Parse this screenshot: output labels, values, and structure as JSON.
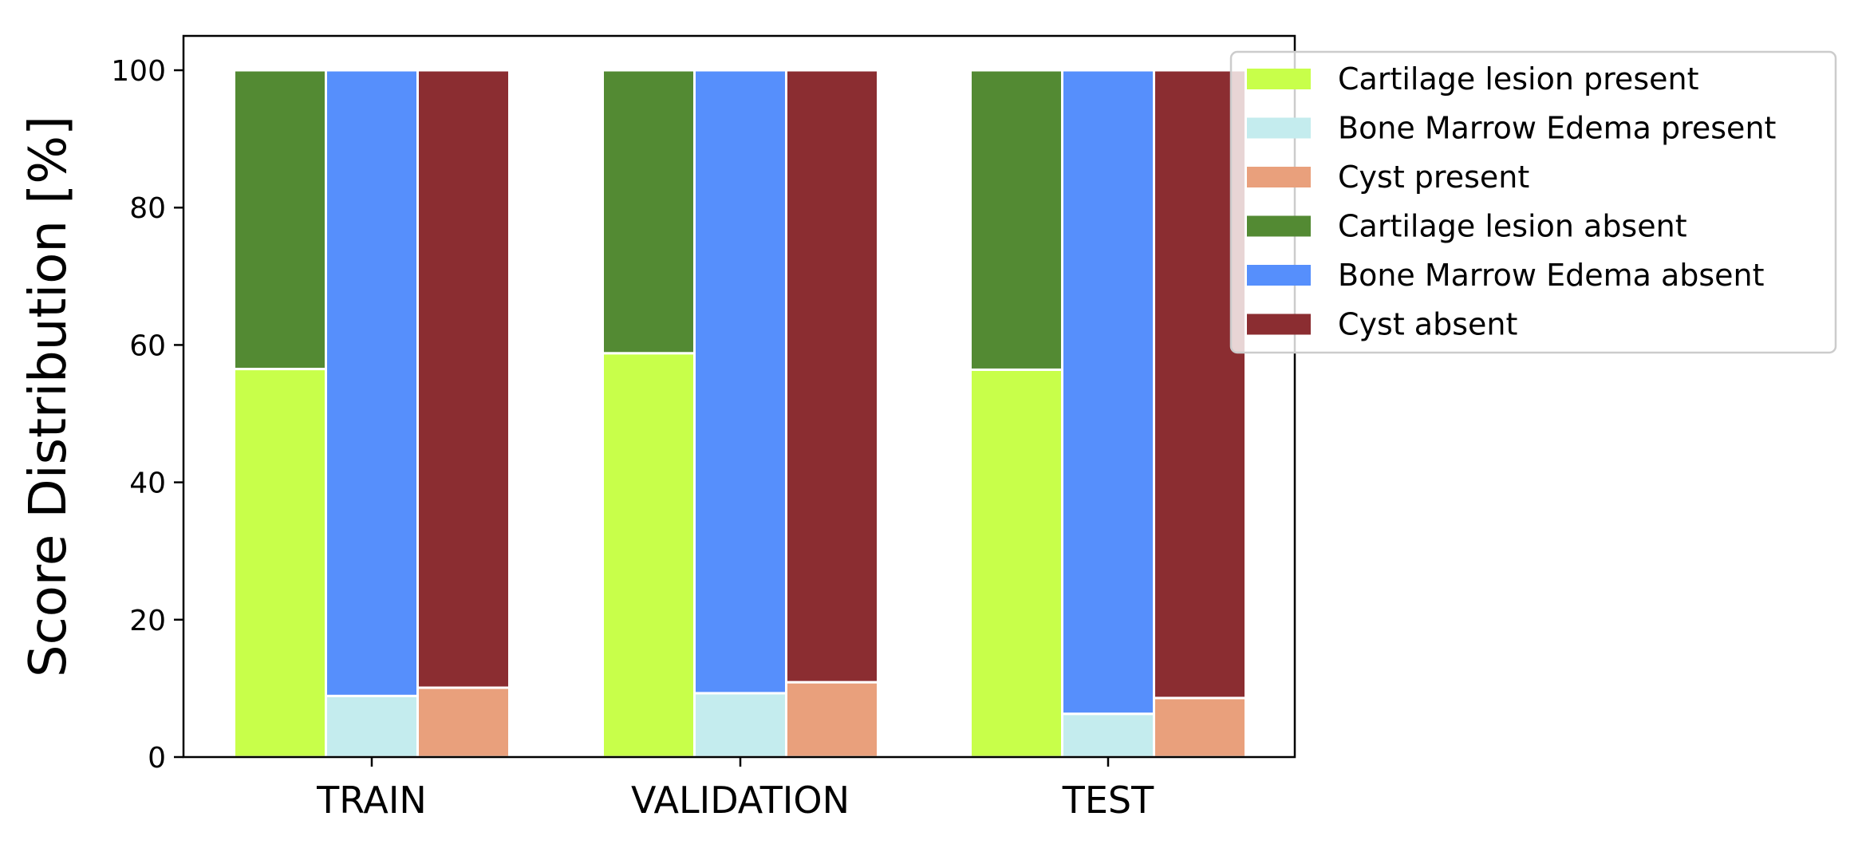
{
  "chart_data": {
    "type": "bar",
    "stacked": true,
    "categories": [
      "TRAIN",
      "VALIDATION",
      "TEST"
    ],
    "ylabel": "Score Distribution [%]",
    "xlabel": "",
    "title": "",
    "ylim": [
      0,
      105
    ],
    "yticks": [
      0,
      20,
      40,
      60,
      80,
      100
    ],
    "grid": false,
    "legend_position": "upper-right-outside",
    "groups": [
      {
        "name": "Cartilage lesion",
        "present": {
          "label": "Cartilage lesion present",
          "color": "#c8ff4a",
          "values": [
            56.5,
            58.8,
            56.4
          ]
        },
        "absent": {
          "label": "Cartilage lesion absent",
          "color": "#538a33",
          "values": [
            43.5,
            41.2,
            43.6
          ]
        }
      },
      {
        "name": "Bone Marrow Edema",
        "present": {
          "label": "Bone Marrow Edema present",
          "color": "#c4ecee",
          "values": [
            8.9,
            9.3,
            6.3
          ]
        },
        "absent": {
          "label": "Bone Marrow Edema absent",
          "color": "#568ffc",
          "values": [
            91.1,
            90.7,
            93.7
          ]
        }
      },
      {
        "name": "Cyst",
        "present": {
          "label": "Cyst present",
          "color": "#e9a07c",
          "values": [
            10.1,
            10.9,
            8.6
          ]
        },
        "absent": {
          "label": "Cyst absent",
          "color": "#8b2d31",
          "values": [
            89.9,
            89.1,
            91.4
          ]
        }
      }
    ],
    "legend": [
      {
        "label": "Cartilage lesion present",
        "color": "#c8ff4a"
      },
      {
        "label": "Bone Marrow Edema present",
        "color": "#c4ecee"
      },
      {
        "label": "Cyst present",
        "color": "#e9a07c"
      },
      {
        "label": "Cartilage lesion absent",
        "color": "#538a33"
      },
      {
        "label": "Bone Marrow Edema absent",
        "color": "#568ffc"
      },
      {
        "label": "Cyst absent",
        "color": "#8b2d31"
      }
    ]
  }
}
